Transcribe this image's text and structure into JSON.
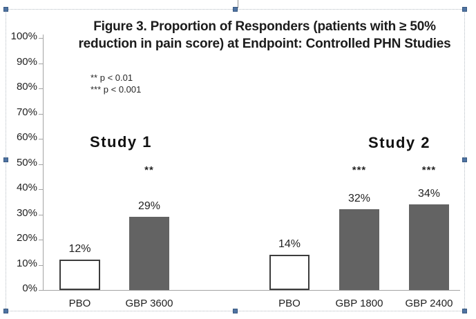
{
  "selection": {
    "handle_color": "#4e73a2",
    "border_color": "#b3bac1"
  },
  "chart_data": {
    "type": "bar",
    "title": "Figure 3. Proportion of Responders (patients with ≥ 50% reduction in pain score) at Endpoint: Controlled PHN Studies",
    "title_line1": "Figure 3. Proportion of Responders (patients with ≥ 50%",
    "title_line2": "reduction in pain score) at Endpoint: Controlled PHN Studies",
    "annotations": [
      {
        "text": "** p < 0.01"
      },
      {
        "text": "*** p < 0.001"
      }
    ],
    "ylim": [
      0,
      100
    ],
    "ytick_step": 10,
    "yticks": [
      "0%",
      "10%",
      "20%",
      "30%",
      "40%",
      "50%",
      "60%",
      "70%",
      "80%",
      "90%",
      "100%"
    ],
    "grid": false,
    "legend": false,
    "groups": [
      {
        "label": "Study 1",
        "bars": [
          {
            "category": "PBO",
            "value": 12,
            "value_label": "12%",
            "style": "placebo",
            "significance": ""
          },
          {
            "category": "GBP 3600",
            "value": 29,
            "value_label": "29%",
            "style": "active",
            "significance": "**"
          }
        ]
      },
      {
        "label": "Study 2",
        "bars": [
          {
            "category": "PBO",
            "value": 14,
            "value_label": "14%",
            "style": "placebo",
            "significance": ""
          },
          {
            "category": "GBP 1800",
            "value": 32,
            "value_label": "32%",
            "style": "active",
            "significance": "***"
          },
          {
            "category": "GBP 2400",
            "value": 34,
            "value_label": "34%",
            "style": "active",
            "significance": "***"
          }
        ]
      }
    ],
    "colors": {
      "active_bar": "#636363",
      "placebo_bar_fill": "#ffffff",
      "placebo_bar_border": "#3c3c3c",
      "axis": "#a3a3a3",
      "text": "#1f1f1f"
    }
  }
}
